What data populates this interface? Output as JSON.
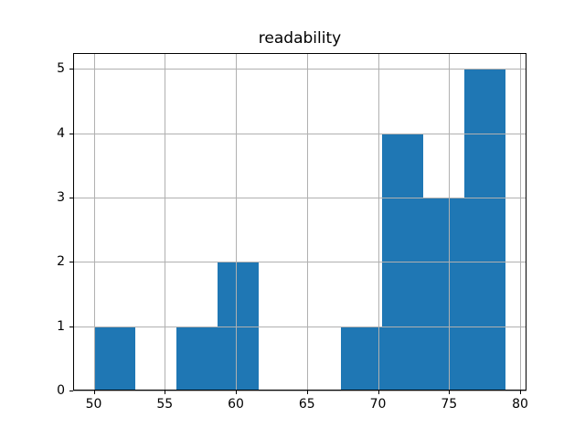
{
  "chart_data": {
    "type": "histogram",
    "title": "readability",
    "xlabel": "",
    "ylabel": "",
    "bin_edges": [
      50.0,
      52.9,
      55.8,
      58.7,
      61.6,
      64.5,
      67.4,
      70.3,
      73.2,
      76.1,
      79.0
    ],
    "counts": [
      1,
      0,
      1,
      2,
      0,
      0,
      1,
      4,
      3,
      5
    ],
    "x_tick_labels": [
      "50",
      "55",
      "60",
      "65",
      "70",
      "75",
      "80"
    ],
    "x_tick_values": [
      50,
      55,
      60,
      65,
      70,
      75,
      80
    ],
    "y_tick_labels": [
      "0",
      "1",
      "2",
      "3",
      "4",
      "5"
    ],
    "y_tick_values": [
      0,
      1,
      2,
      3,
      4,
      5
    ],
    "xlim": [
      48.55,
      80.45
    ],
    "ylim": [
      0,
      5.25
    ],
    "grid": true,
    "legend": null,
    "colors": {
      "bar": "#1f77b4",
      "grid": "#b0b0b0",
      "axis": "#000000",
      "text": "#000000",
      "background": "#ffffff"
    }
  }
}
